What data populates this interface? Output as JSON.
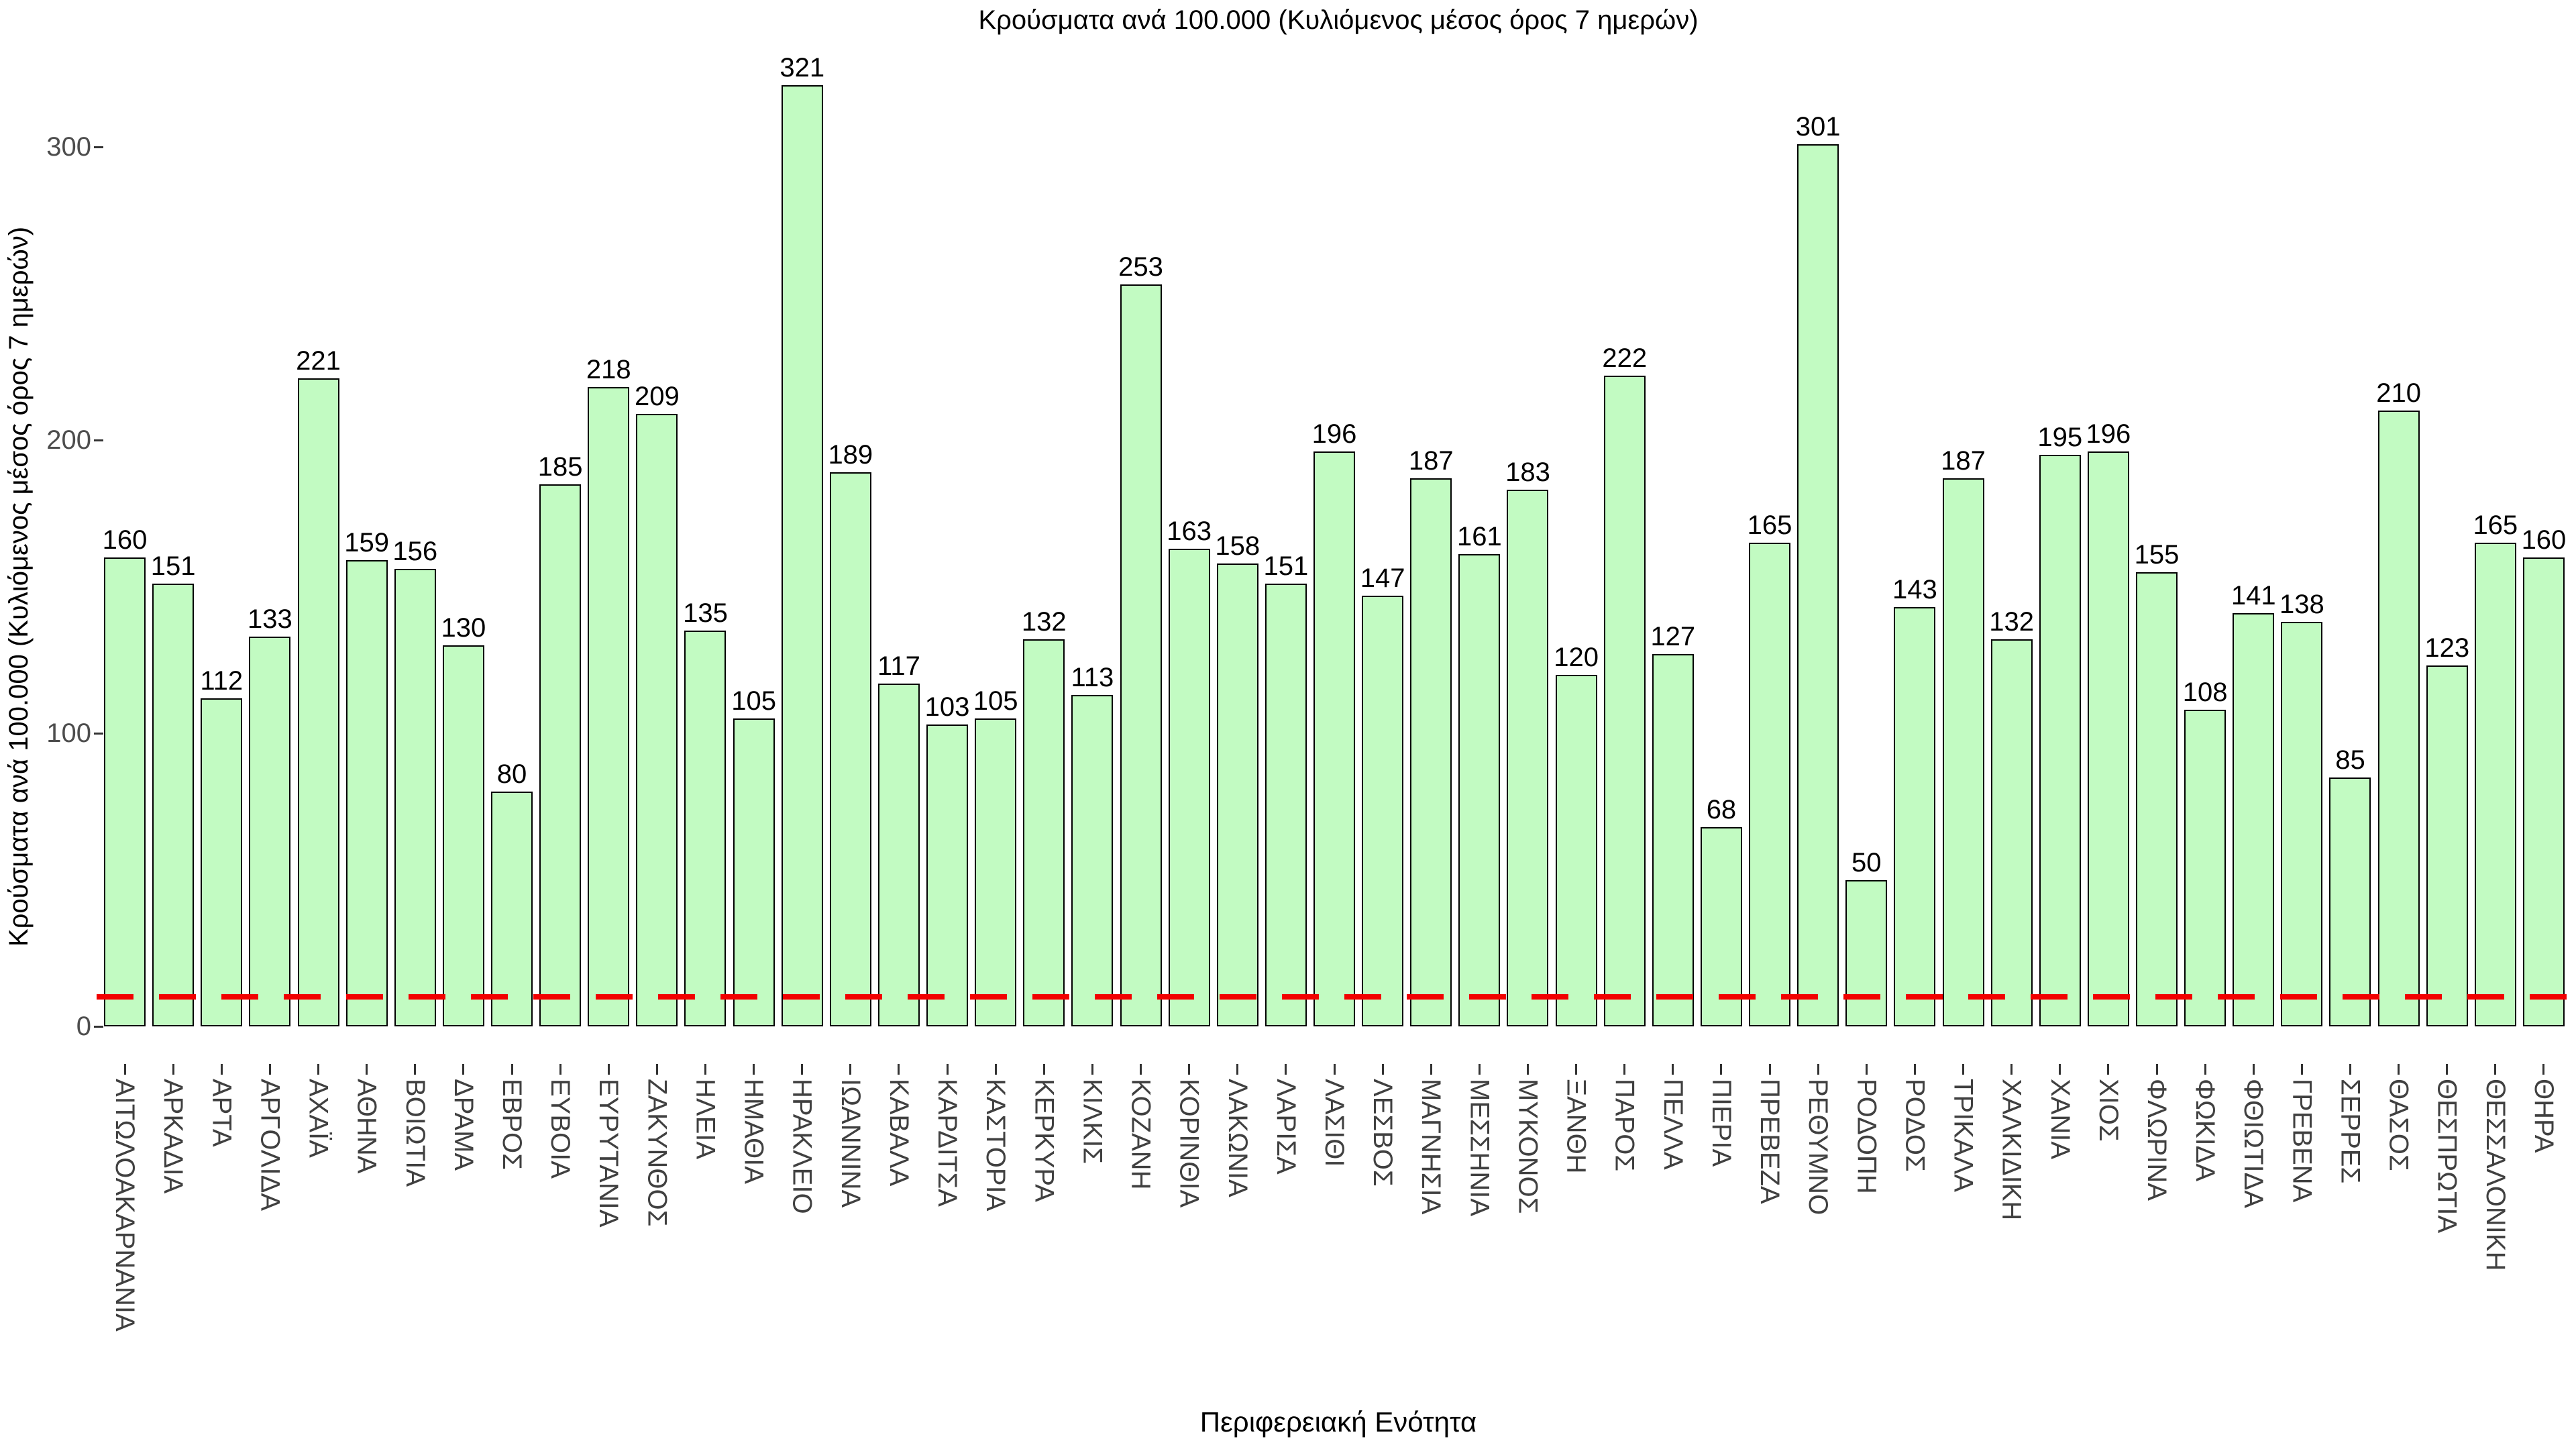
{
  "chart_data": {
    "type": "bar",
    "title": "Κρούσματα ανά 100.000 (Κυλιόμενος μέσος όρος 7 ημερών)",
    "xlabel": "Περιφερειακή Ενότητα",
    "ylabel": "Κρούσματα ανά 100.000 (Κυλιόμενος μέσος όρος 7 ημερών)",
    "categories": [
      "ΑΙΤΩΛΟΑΚΑΡΝΑΝΙΑ",
      "ΑΡΚΑΔΙΑ",
      "ΑΡΤΑ",
      "ΑΡΓΟΛΙΔΑ",
      "ΑΧΑΪΑ",
      "ΑΘΗΝΑ",
      "ΒΟΙΩΤΙΑ",
      "ΔΡΑΜΑ",
      "ΕΒΡΟΣ",
      "ΕΥΒΟΙΑ",
      "ΕΥΡΥΤΑΝΙΑ",
      "ΖΑΚΥΝΘΟΣ",
      "ΗΛΕΙΑ",
      "ΗΜΑΘΙΑ",
      "ΗΡΑΚΛΕΙΟ",
      "ΙΩΑΝΝΙΝΑ",
      "ΚΑΒΑΛΑ",
      "ΚΑΡΔΙΤΣΑ",
      "ΚΑΣΤΟΡΙΑ",
      "ΚΕΡΚΥΡΑ",
      "ΚΙΛΚΙΣ",
      "ΚΟΖΑΝΗ",
      "ΚΟΡΙΝΘΙΑ",
      "ΛΑΚΩΝΙΑ",
      "ΛΑΡΙΣΑ",
      "ΛΑΣΙΘΙ",
      "ΛΕΣΒΟΣ",
      "ΜΑΓΝΗΣΙΑ",
      "ΜΕΣΣΗΝΙΑ",
      "ΜΥΚΟΝΟΣ",
      "ΞΑΝΘΗ",
      "ΠΑΡΟΣ",
      "ΠΕΛΛΑ",
      "ΠΙΕΡΙΑ",
      "ΠΡΕΒΕΖΑ",
      "ΡΕΘΥΜΝΟ",
      "ΡΟΔΟΠΗ",
      "ΡΟΔΟΣ",
      "ΤΡΙΚΑΛΑ",
      "ΧΑΛΚΙΔΙΚΗ",
      "ΧΑΝΙΑ",
      "ΧΙΟΣ",
      "ΦΛΩΡΙΝΑ",
      "ΦΩΚΙΔΑ",
      "ΦΘΙΩΤΙΔΑ",
      "ΓΡΕΒΕΝΑ",
      "ΣΕΡΡΕΣ",
      "ΘΑΣΟΣ",
      "ΘΕΣΠΡΩΤΙΑ",
      "ΘΕΣΣΑΛΟΝΙΚΗ",
      "ΘΗΡΑ"
    ],
    "values": [
      160,
      151,
      112,
      133,
      221,
      159,
      156,
      130,
      80,
      185,
      218,
      209,
      135,
      105,
      321,
      189,
      117,
      103,
      105,
      132,
      113,
      253,
      163,
      158,
      151,
      196,
      147,
      187,
      161,
      183,
      120,
      222,
      127,
      68,
      165,
      301,
      50,
      143,
      187,
      132,
      195,
      196,
      155,
      108,
      141,
      138,
      85,
      210,
      123,
      165,
      160
    ],
    "yticks": [
      0,
      100,
      200,
      300
    ],
    "ylim": [
      0,
      330
    ],
    "grid": false,
    "legend": null,
    "bar_fill_color": "#c2fbc2",
    "bar_border_color": "#000000",
    "value_label_color": "#000000",
    "tick_label_color": "#4d4d4d",
    "reference_line": {
      "value": 10,
      "color": "#f20000",
      "style": "dashed"
    }
  }
}
